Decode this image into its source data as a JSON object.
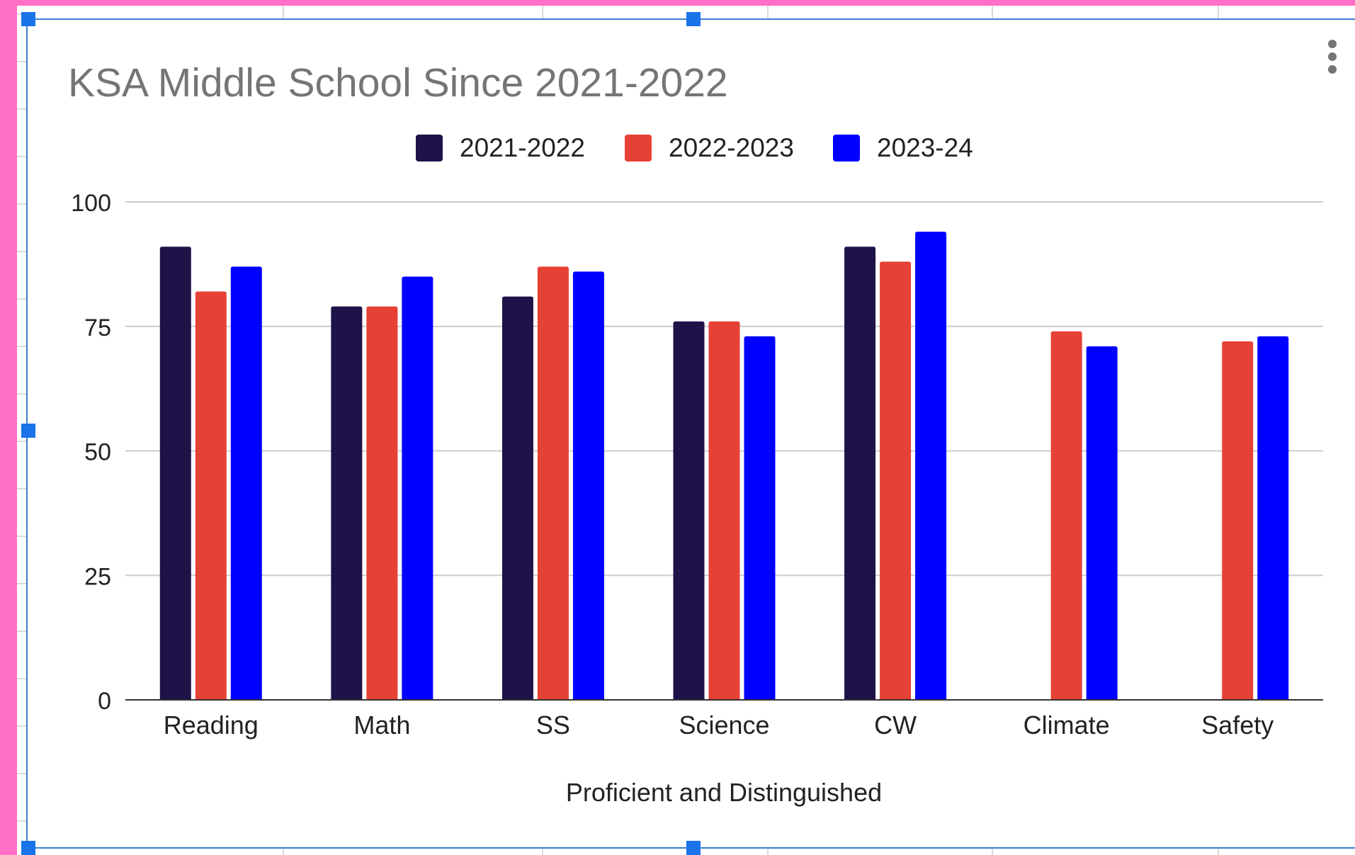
{
  "colors": {
    "frame_pink": "#ff6ec7",
    "sheet_grid": "#d9d9d9",
    "selection_border": "#3d7fd1",
    "handle": "#1a73e8",
    "title_text": "#757575",
    "axis_text": "#222222",
    "gridline": "#cccccc",
    "baseline": "#333333",
    "menu_dots": "#757575"
  },
  "chart_menu": {
    "icon": "more-vert-icon"
  },
  "chart_data": {
    "type": "bar",
    "title": "KSA Middle School Since 2021-2022",
    "xlabel": "Proficient and Distinguished",
    "ylabel": "",
    "ylim": [
      0,
      100
    ],
    "yticks": [
      0,
      25,
      50,
      75,
      100
    ],
    "grid": true,
    "legend_position": "top",
    "categories": [
      "Reading",
      "Math",
      "SS",
      "Science",
      "CW",
      "Climate",
      "Safety"
    ],
    "series": [
      {
        "name": "2021-2022",
        "color": "#1e1248",
        "values": [
          91,
          79,
          81,
          76,
          91,
          null,
          null
        ]
      },
      {
        "name": "2022-2023",
        "color": "#e64135",
        "values": [
          82,
          79,
          87,
          76,
          88,
          74,
          72
        ]
      },
      {
        "name": "2023-24",
        "color": "#0000ff",
        "values": [
          87,
          85,
          86,
          73,
          94,
          71,
          73
        ]
      }
    ]
  }
}
